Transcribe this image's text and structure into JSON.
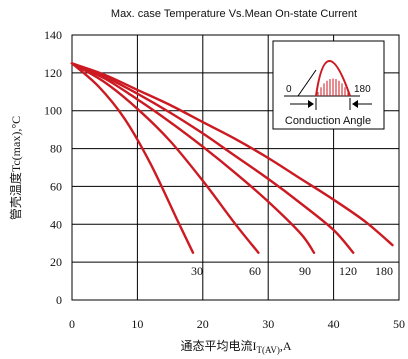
{
  "chart_data": {
    "type": "line",
    "title": "Max. case Temperature Vs.Mean On-state Current",
    "xlabel_main": "通态平均电流I",
    "xlabel_sub": "T(AV)",
    "xlabel_unit": ",A",
    "ylabel": "管壳温度Tc(max),°C",
    "xlim": [
      0,
      50
    ],
    "ylim": [
      0,
      140
    ],
    "x_ticks": [
      "0",
      "10",
      "20",
      "30",
      "40",
      "50"
    ],
    "y_ticks": [
      "0",
      "20",
      "40",
      "60",
      "80",
      "100",
      "120",
      "140"
    ],
    "grid": true,
    "series_color": "#cc1a22",
    "series": [
      {
        "name": "30",
        "x": [
          0,
          4,
          8,
          12,
          16,
          18.5
        ],
        "y": [
          125,
          113,
          96,
          72,
          43,
          25
        ]
      },
      {
        "name": "60",
        "x": [
          0,
          5,
          10,
          15,
          20,
          25,
          28.5
        ],
        "y": [
          125,
          115,
          101,
          84,
          63,
          40,
          25
        ]
      },
      {
        "name": "90",
        "x": [
          0,
          5,
          10,
          15,
          20,
          25,
          30,
          35,
          37
        ],
        "y": [
          125,
          117,
          106,
          94,
          81,
          67,
          52,
          35,
          25
        ]
      },
      {
        "name": "120",
        "x": [
          0,
          5,
          10,
          15,
          20,
          25,
          30,
          35,
          40,
          43
        ],
        "y": [
          125,
          118,
          109,
          99,
          88,
          76,
          64,
          51,
          37,
          25
        ]
      },
      {
        "name": "180",
        "x": [
          0,
          5,
          10,
          15,
          20,
          25,
          30,
          35,
          40,
          45,
          49
        ],
        "y": [
          125,
          119,
          111,
          103,
          94,
          85,
          75,
          64,
          53,
          41,
          29
        ]
      }
    ],
    "curve_labels": [
      "30",
      "60",
      "90",
      "120",
      "180"
    ],
    "inset": {
      "label_0": "0",
      "label_180": "180",
      "caption": "Conduction Angle"
    }
  }
}
